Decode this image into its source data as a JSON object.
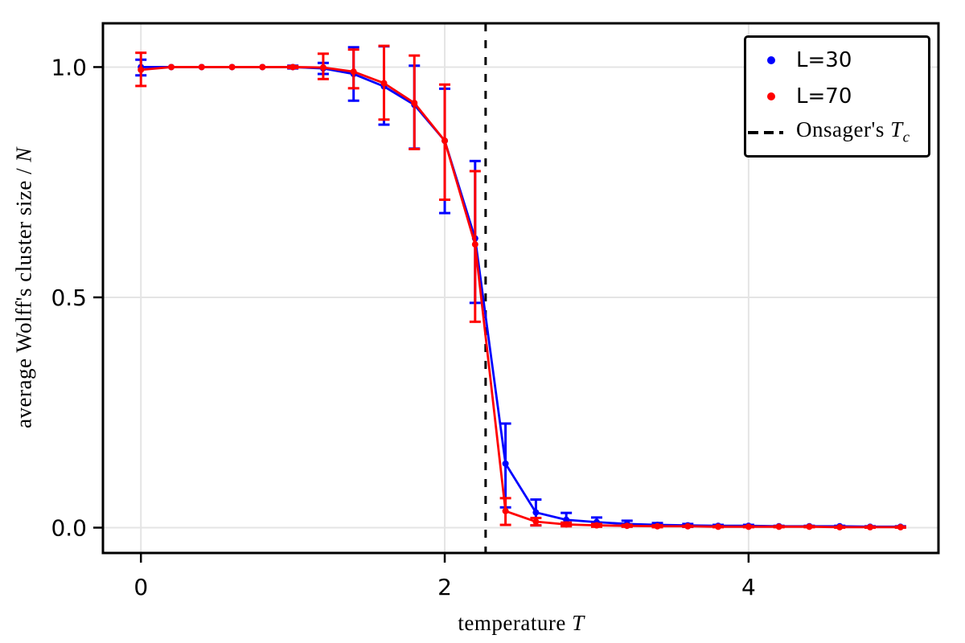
{
  "figure": {
    "background": "#ffffff",
    "frame_color": "#000000"
  },
  "axes": {
    "xlabel": {
      "text": "temperature",
      "var": "T"
    },
    "ylabel": {
      "text": "average Wolff's cluster size /",
      "var": "N"
    },
    "xticks": {
      "values": [
        0,
        2,
        4
      ],
      "labels": [
        "0",
        "2",
        "4"
      ]
    },
    "yticks": {
      "values": [
        0.0,
        0.5,
        1.0
      ],
      "labels": [
        "0.0",
        "0.5",
        "1.0"
      ]
    }
  },
  "legend": {
    "items": [
      {
        "label": "L=30",
        "marker": "dot",
        "color": "#0000ff"
      },
      {
        "label": "L=70",
        "marker": "dot",
        "color": "#ff0000"
      },
      {
        "prefix": "Onsager's",
        "var": "T",
        "sub": "c",
        "marker": "dashed-line",
        "color": "#000000"
      }
    ]
  },
  "chart_data": {
    "type": "line",
    "title": "",
    "xlabel": "temperature T",
    "ylabel": "average Wolff's cluster size / N",
    "xlim": [
      -0.25,
      5.25
    ],
    "ylim": [
      -0.055,
      1.095
    ],
    "grid": true,
    "grid_color": "#e4e4e4",
    "legend_position": "upper right",
    "x": [
      0.0,
      0.2,
      0.4,
      0.6,
      0.8,
      1.0,
      1.2,
      1.4,
      1.6,
      1.8,
      2.0,
      2.2,
      2.4,
      2.6,
      2.8,
      3.0,
      3.2,
      3.4,
      3.6,
      3.8,
      4.0,
      4.2,
      4.4,
      4.6,
      4.8,
      5.0
    ],
    "series": [
      {
        "name": "L=30",
        "color": "#0000ff",
        "values": [
          1.0,
          1.0,
          1.0,
          1.0,
          1.0,
          1.0,
          0.997,
          0.985,
          0.958,
          0.918,
          0.84,
          0.628,
          0.139,
          0.033,
          0.017,
          0.012,
          0.008,
          0.006,
          0.005,
          0.004,
          0.004,
          0.003,
          0.003,
          0.003,
          0.002,
          0.002
        ],
        "err_lo": [
          0.018,
          0,
          0,
          0,
          0,
          0.003,
          0.012,
          0.058,
          0.083,
          0.095,
          0.157,
          0.14,
          0.095,
          0.028,
          0.012,
          0.007,
          0.005,
          0.003,
          0.003,
          0.002,
          0.002,
          0.001,
          0.001,
          0.001,
          0.001,
          0.001
        ],
        "err_hi": [
          0.016,
          0,
          0,
          0,
          0,
          0.003,
          0.012,
          0.058,
          0.087,
          0.085,
          0.113,
          0.168,
          0.087,
          0.028,
          0.015,
          0.01,
          0.007,
          0.004,
          0.003,
          0.002,
          0.002,
          0.001,
          0.001,
          0.001,
          0.001,
          0.001
        ]
      },
      {
        "name": "L=70",
        "color": "#ff0000",
        "values": [
          0.994,
          1.0,
          1.0,
          1.0,
          1.0,
          1.0,
          0.999,
          0.99,
          0.965,
          0.922,
          0.84,
          0.615,
          0.036,
          0.013,
          0.007,
          0.005,
          0.004,
          0.003,
          0.003,
          0.002,
          0.002,
          0.002,
          0.002,
          0.001,
          0.001,
          0.001
        ],
        "err_lo": [
          0.035,
          0,
          0,
          0,
          0,
          0.002,
          0.025,
          0.036,
          0.079,
          0.1,
          0.128,
          0.168,
          0.03,
          0.008,
          0.004,
          0.003,
          0.002,
          0.002,
          0.001,
          0.001,
          0.001,
          0.001,
          0.001,
          0.001,
          0.001,
          0.001
        ],
        "err_hi": [
          0.037,
          0,
          0,
          0,
          0,
          0.002,
          0.03,
          0.048,
          0.081,
          0.103,
          0.122,
          0.159,
          0.028,
          0.008,
          0.004,
          0.003,
          0.002,
          0.002,
          0.001,
          0.001,
          0.001,
          0.001,
          0.001,
          0.001,
          0.001,
          0.001
        ]
      }
    ],
    "vline": {
      "x": 2.269,
      "color": "#000000",
      "style": "dashed",
      "label": "Onsager's T_c"
    }
  }
}
